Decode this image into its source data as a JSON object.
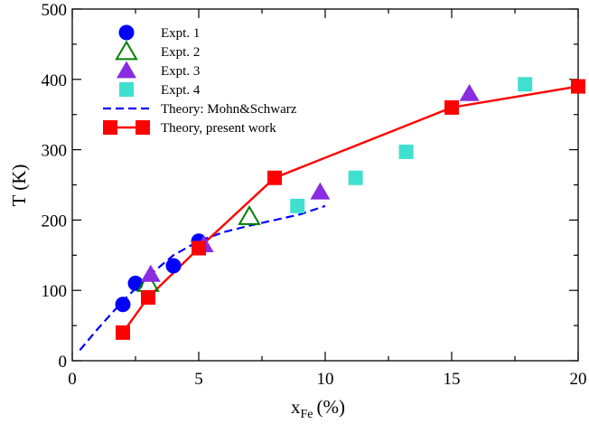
{
  "chart_data": {
    "type": "scatter",
    "xlabel": "x",
    "xlabel_sub": "Fe",
    "xlabel_unit": "(%)",
    "ylabel": "T (K)",
    "xlim": [
      0,
      20
    ],
    "ylim": [
      0,
      500
    ],
    "xticks": [
      0,
      5,
      10,
      15,
      20
    ],
    "yticks": [
      0,
      100,
      200,
      300,
      400,
      500
    ],
    "grid": false,
    "legend_position": "top-left",
    "series": [
      {
        "name": "Expt. 1",
        "marker": "circle-filled",
        "color": "#0000ff",
        "x": [
          2.0,
          2.5,
          4.0,
          5.0
        ],
        "y": [
          80,
          110,
          135,
          170
        ]
      },
      {
        "name": "Expt. 2",
        "marker": "triangle-open",
        "color": "#008000",
        "x": [
          3.0,
          7.0
        ],
        "y": [
          110,
          205
        ]
      },
      {
        "name": "Expt. 3",
        "marker": "triangle-filled",
        "color": "#8a2be2",
        "x": [
          3.1,
          5.2,
          9.8,
          15.7
        ],
        "y": [
          123,
          165,
          240,
          380
        ]
      },
      {
        "name": "Expt. 4",
        "marker": "square-filled",
        "color": "#40e0d0",
        "x": [
          8.9,
          11.2,
          13.2,
          17.9
        ],
        "y": [
          220,
          260,
          297,
          393
        ]
      },
      {
        "name": "Theory: Mohn&Schwarz",
        "marker": "dashed-line",
        "color": "#0000ff",
        "x": [
          0.3,
          1.0,
          2.0,
          3.0,
          4.0,
          5.0,
          6.0,
          7.0,
          8.0,
          9.0,
          10.0
        ],
        "y": [
          15,
          45,
          85,
          120,
          150,
          170,
          183,
          192,
          200,
          208,
          220
        ]
      },
      {
        "name": "Theory, present work",
        "marker": "square-filled-line",
        "color": "#ff0000",
        "x": [
          2.0,
          3.0,
          5.0,
          8.0,
          15.0,
          20.0
        ],
        "y": [
          40,
          90,
          160,
          260,
          360,
          390
        ]
      }
    ]
  }
}
